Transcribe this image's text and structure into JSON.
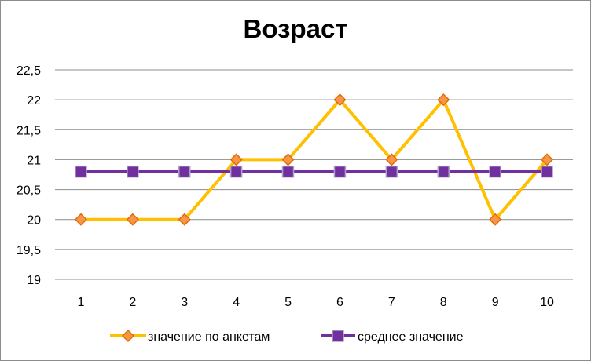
{
  "chart_data": {
    "type": "line",
    "title": "Возраст",
    "categories": [
      "1",
      "2",
      "3",
      "4",
      "5",
      "6",
      "7",
      "8",
      "9",
      "10"
    ],
    "ylim": [
      19,
      22.5
    ],
    "yticks": [
      19,
      19.5,
      20,
      20.5,
      21,
      21.5,
      22,
      22.5
    ],
    "ytick_labels": [
      "19",
      "19,5",
      "20",
      "20,5",
      "21",
      "21,5",
      "22",
      "22,5"
    ],
    "grid": "horizontal",
    "legend_position": "bottom",
    "series": [
      {
        "name": "значение по анкетам",
        "values": [
          20,
          20,
          20,
          21,
          21,
          22,
          21,
          22,
          20,
          21
        ],
        "color": "#FFC000",
        "marker": "diamond",
        "marker_fill": "#F79646",
        "marker_edge": "#E36C09"
      },
      {
        "name": "среднее значение",
        "values": [
          20.8,
          20.8,
          20.8,
          20.8,
          20.8,
          20.8,
          20.8,
          20.8,
          20.8,
          20.8
        ],
        "color": "#7030A0",
        "marker": "square",
        "marker_fill": "#7030A0",
        "marker_edge": "#B1A0C7"
      }
    ]
  }
}
